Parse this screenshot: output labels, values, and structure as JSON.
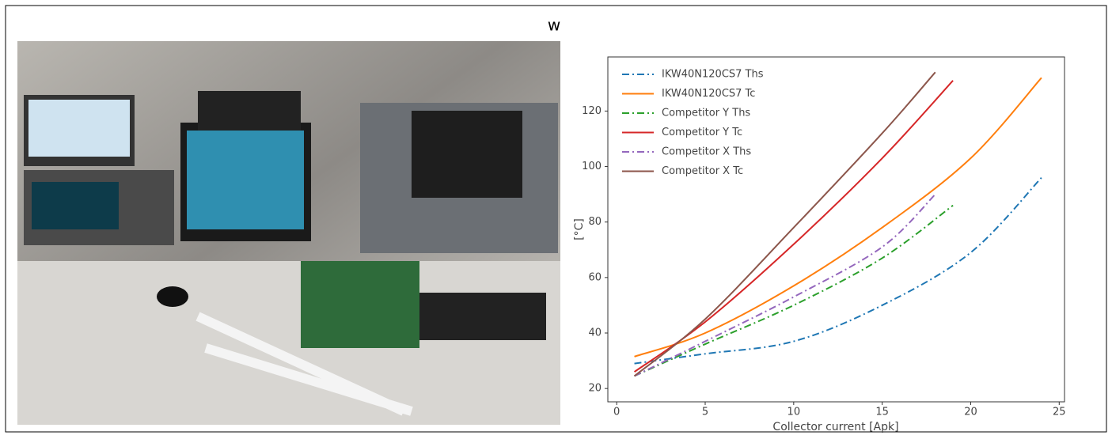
{
  "heading_mark": "w",
  "chart_data": {
    "type": "line",
    "xlabel": "Collector current [Apk]",
    "ylabel": "[°C]",
    "xlim": [
      -0.5,
      25.3
    ],
    "ylim": [
      15.2,
      139.5
    ],
    "xticks": [
      0,
      5,
      10,
      15,
      20,
      25
    ],
    "yticks": [
      20,
      40,
      60,
      80,
      100,
      120
    ],
    "legend": "upper left",
    "grid": false,
    "series": [
      {
        "name": "IKW40N120CS7 Ths",
        "color": "#1f77b4",
        "linestyle": "dashdot",
        "x": [
          1,
          5,
          10,
          15,
          20,
          24
        ],
        "values": [
          29,
          32.5,
          37,
          50,
          69,
          96
        ]
      },
      {
        "name": "IKW40N120CS7 Tc",
        "color": "#ff7f0e",
        "linestyle": "solid",
        "x": [
          1,
          5,
          10,
          15,
          20,
          24
        ],
        "values": [
          31.5,
          40,
          57,
          78,
          103,
          132
        ]
      },
      {
        "name": "Competitor Y Ths",
        "color": "#2ca02c",
        "linestyle": "dashdot",
        "x": [
          1,
          5,
          10,
          15,
          19
        ],
        "values": [
          24.5,
          36,
          50,
          67,
          86
        ]
      },
      {
        "name": "Competitor Y Tc",
        "color": "#d62728",
        "linestyle": "solid",
        "x": [
          1,
          5,
          10,
          15,
          19
        ],
        "values": [
          26,
          44,
          72,
          103,
          131
        ]
      },
      {
        "name": "Competitor X Ths",
        "color": "#9467bd",
        "linestyle": "dashdot",
        "x": [
          1,
          5,
          10,
          15,
          18
        ],
        "values": [
          24.5,
          37,
          53,
          71,
          90
        ]
      },
      {
        "name": "Competitor X Tc",
        "color": "#8c564b",
        "linestyle": "solid",
        "x": [
          1,
          5,
          10,
          15,
          18
        ],
        "values": [
          24.5,
          45,
          78,
          112,
          134
        ]
      }
    ]
  }
}
